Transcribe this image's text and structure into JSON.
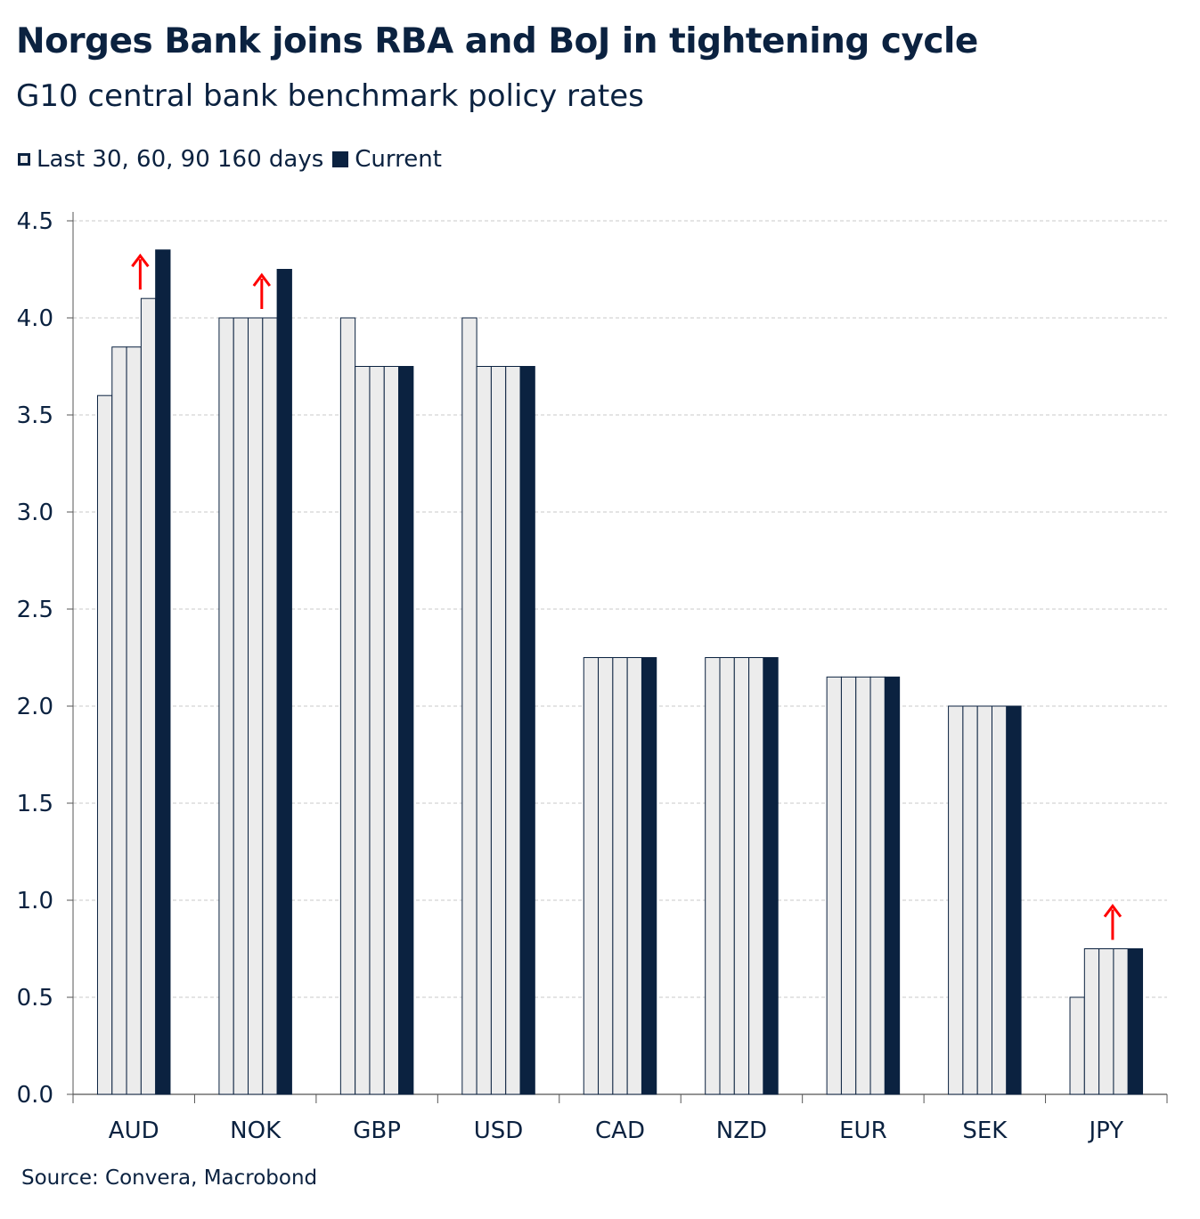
{
  "title": "Norges Bank joins RBA and BoJ in tightening cycle",
  "subtitle": "G10 central bank benchmark policy rates",
  "legend": {
    "past_label": "Last 30, 60, 90 160 days",
    "current_label": "Current"
  },
  "source": "Source: Convera, Macrobond",
  "colors": {
    "past_fill": "#ececec",
    "past_stroke": "#0b2240",
    "current": "#0b2240",
    "arrow": "#ff0000",
    "grid": "#c8c8c8"
  },
  "chart_data": {
    "type": "bar",
    "categories": [
      "AUD",
      "NOK",
      "GBP",
      "USD",
      "CAD",
      "NZD",
      "EUR",
      "SEK",
      "JPY"
    ],
    "series": [
      {
        "name": "Last 30, 60, 90 160 days",
        "values": [
          [
            3.6,
            3.85,
            3.85,
            4.1
          ],
          [
            4.0,
            4.0,
            4.0,
            4.0
          ],
          [
            4.0,
            3.75,
            3.75,
            3.75
          ],
          [
            4.0,
            3.75,
            3.75,
            3.75
          ],
          [
            2.25,
            2.25,
            2.25,
            2.25
          ],
          [
            2.25,
            2.25,
            2.25,
            2.25
          ],
          [
            2.15,
            2.15,
            2.15,
            2.15
          ],
          [
            2.0,
            2.0,
            2.0,
            2.0
          ],
          [
            0.5,
            0.75,
            0.75,
            0.75
          ]
        ]
      },
      {
        "name": "Current",
        "values": [
          4.35,
          4.25,
          3.75,
          3.75,
          2.25,
          2.25,
          2.15,
          2.0,
          0.75
        ]
      }
    ],
    "hike_arrows": [
      "AUD",
      "NOK",
      "JPY"
    ],
    "yticks": [
      "0.0",
      "0.5",
      "1.0",
      "1.5",
      "2.0",
      "2.5",
      "3.0",
      "3.5",
      "4.0",
      "4.5"
    ],
    "ylim": [
      0,
      4.5
    ],
    "grid": true,
    "legend_position": "top-left"
  }
}
